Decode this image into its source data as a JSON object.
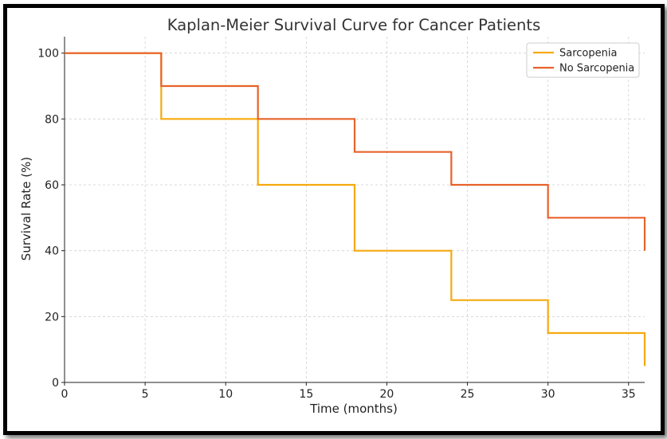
{
  "chart_data": {
    "type": "line",
    "step": true,
    "title": "Kaplan-Meier Survival Curve for Cancer Patients",
    "xlabel": "Time (months)",
    "ylabel": "Survival Rate (%)",
    "xlim": [
      0,
      36
    ],
    "ylim": [
      0,
      105
    ],
    "xticks": [
      0,
      5,
      10,
      15,
      20,
      25,
      30,
      35
    ],
    "yticks": [
      0,
      20,
      40,
      60,
      80,
      100
    ],
    "grid": true,
    "legend_position": "top-right",
    "x": [
      0,
      6,
      12,
      18,
      24,
      30,
      36
    ],
    "series": [
      {
        "name": "Sarcopenia",
        "color": "#f5a90f",
        "values": [
          100,
          80,
          60,
          40,
          25,
          15,
          5
        ]
      },
      {
        "name": "No Sarcopenia",
        "color": "#e8622a",
        "values": [
          100,
          90,
          80,
          70,
          60,
          50,
          40
        ]
      }
    ]
  }
}
